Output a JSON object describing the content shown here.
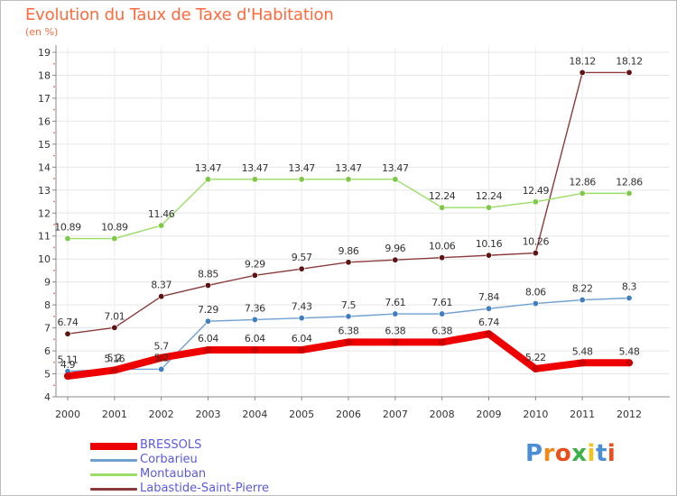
{
  "title": "Evolution du Taux de Taxe d'Habitation",
  "subtitle": "(en %)",
  "chart_data": {
    "type": "line",
    "title": "Evolution du Taux de Taxe d'Habitation",
    "ylabel": "(en %)",
    "xlabel": "",
    "x": [
      "2000",
      "2001",
      "2002",
      "2003",
      "2004",
      "2005",
      "2006",
      "2007",
      "2008",
      "2009",
      "2010",
      "2011",
      "2012"
    ],
    "ylim": [
      4,
      19
    ],
    "yticks": [
      "4",
      "5",
      "6",
      "7",
      "8",
      "9",
      "10",
      "11",
      "12",
      "13",
      "14",
      "15",
      "16",
      "17",
      "18",
      "19"
    ],
    "grid": true,
    "legend_position": "bottom-left",
    "series": [
      {
        "name": "BRESSOLS",
        "color": "#ee0000",
        "point_color": "#cc0000",
        "values": [
          4.9,
          5.16,
          5.7,
          6.04,
          6.04,
          6.04,
          6.38,
          6.38,
          6.38,
          6.74,
          5.22,
          5.48,
          5.48
        ],
        "labels": [
          "4.9",
          "5.16",
          "5.7",
          "6.04",
          "6.04",
          "6.04",
          "6.38",
          "6.38",
          "6.38",
          "6.74",
          "5.22",
          "5.48",
          "5.48"
        ]
      },
      {
        "name": "Corbarieu",
        "color": "#6fa0d0",
        "point_color": "#3f7fc0",
        "values": [
          5.11,
          5.2,
          5.2,
          7.29,
          7.36,
          7.43,
          7.5,
          7.61,
          7.61,
          7.84,
          8.06,
          8.22,
          8.3
        ],
        "labels": [
          "5.11",
          "5.2",
          "5.2",
          "7.29",
          "7.36",
          "7.43",
          "7.5",
          "7.61",
          "7.61",
          "7.84",
          "8.06",
          "8.22",
          "8.3"
        ]
      },
      {
        "name": "Montauban",
        "color": "#99dd66",
        "point_color": "#7ec845",
        "values": [
          10.89,
          10.89,
          11.46,
          13.47,
          13.47,
          13.47,
          13.47,
          13.47,
          12.24,
          12.24,
          12.49,
          12.86,
          12.86
        ],
        "labels": [
          "10.89",
          "10.89",
          "11.46",
          "13.47",
          "13.47",
          "13.47",
          "13.47",
          "13.47",
          "12.24",
          "12.24",
          "12.49",
          "12.86",
          "12.86"
        ]
      },
      {
        "name": "Labastide-Saint-Pierre",
        "color": "#8a3a3a",
        "point_color": "#5e1414",
        "values": [
          6.74,
          7.01,
          8.37,
          8.85,
          9.29,
          9.57,
          9.86,
          9.96,
          10.06,
          10.16,
          10.26,
          18.12,
          18.12
        ],
        "labels": [
          "6.74",
          "7.01",
          "8.37",
          "8.85",
          "9.29",
          "9.57",
          "9.86",
          "9.96",
          "10.06",
          "10.16",
          "10.26",
          "18.12",
          "18.12"
        ]
      }
    ]
  },
  "legend": {
    "items": [
      {
        "label": "BRESSOLS",
        "color": "#ee0000",
        "text_color": "#5a5ae0"
      },
      {
        "label": "Corbarieu",
        "color": "#6fa0d0",
        "text_color": "#5a5ae0"
      },
      {
        "label": "Montauban",
        "color": "#99dd66",
        "text_color": "#5a5ae0"
      },
      {
        "label": "Labastide-Saint-Pierre",
        "color": "#8a3a3a",
        "text_color": "#5a5ae0"
      }
    ]
  },
  "logo": {
    "text": "Proxiti",
    "letters": [
      "P",
      "r",
      "o",
      "x",
      "i",
      "t",
      "i"
    ],
    "colors": [
      "#4a8fd6",
      "#f08a1c",
      "#e94e1b",
      "#3db04a",
      "#f0c419",
      "#4a8fd6",
      "#e94e1b"
    ]
  }
}
